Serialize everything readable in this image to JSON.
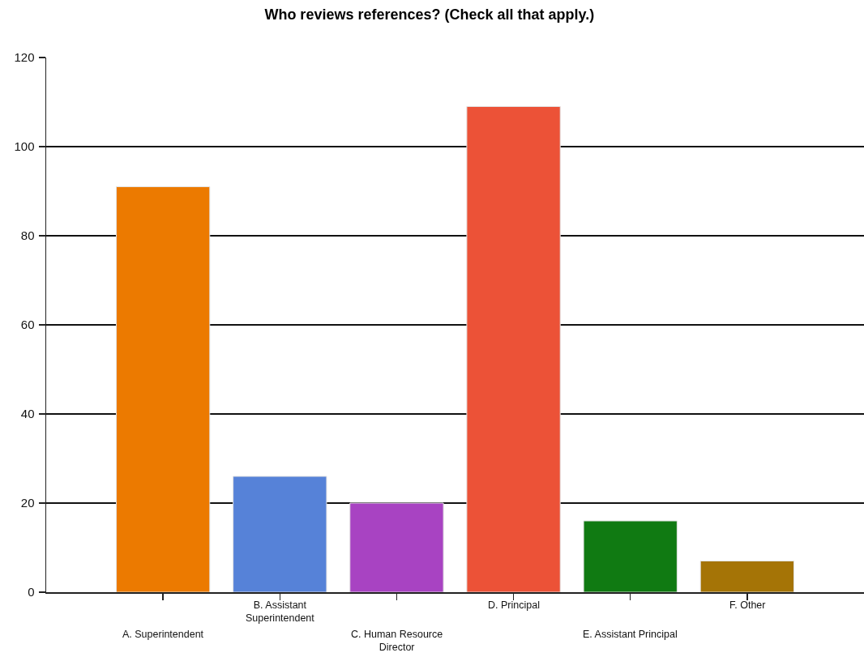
{
  "chart_data": {
    "type": "bar",
    "title": "Who reviews references? (Check all that apply.)",
    "categories": [
      "A. Superintendent",
      "B. Assistant Superintendent",
      "C. Human Resource Director",
      "D. Principal",
      "E. Assistant Principal",
      "F. Other"
    ],
    "values": [
      91,
      26,
      20,
      109,
      16,
      7
    ],
    "colors": [
      "#ec7a00",
      "#5682d8",
      "#a843c2",
      "#ec5237",
      "#107a12",
      "#a57406"
    ],
    "ylim": [
      0,
      120
    ],
    "yticks": [
      0,
      20,
      40,
      60,
      80,
      100,
      120
    ],
    "grid": "y"
  }
}
